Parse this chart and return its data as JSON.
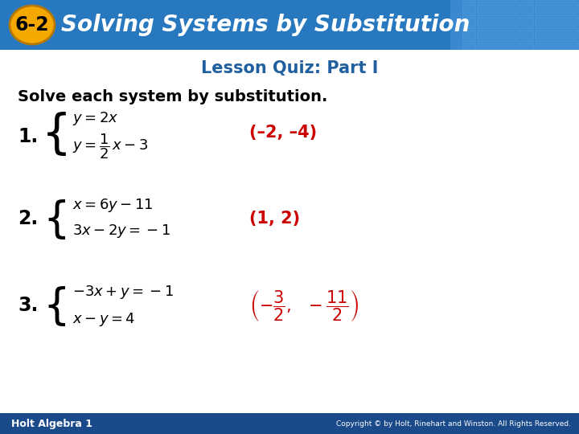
{
  "title_badge": "6-2",
  "title_text": "Solving Systems by Substitution",
  "subtitle": "Lesson Quiz: Part I",
  "instruction": "Solve each system by substitution.",
  "header_bg_left": "#2a6db5",
  "header_bg_right": "#4a90d4",
  "header_text_color": "#ffffff",
  "badge_bg": "#f5a800",
  "badge_text_color": "#000000",
  "subtitle_color": "#2060a0",
  "body_bg": "#ffffff",
  "answer_color": "#cc0000",
  "problem_text_color": "#000000",
  "footer_bg": "#1a4a8a",
  "footer_text": "Holt Algebra 1",
  "footer_copyright": "Copyright © by Holt, Rinehart and Winston. All Rights Reserved."
}
